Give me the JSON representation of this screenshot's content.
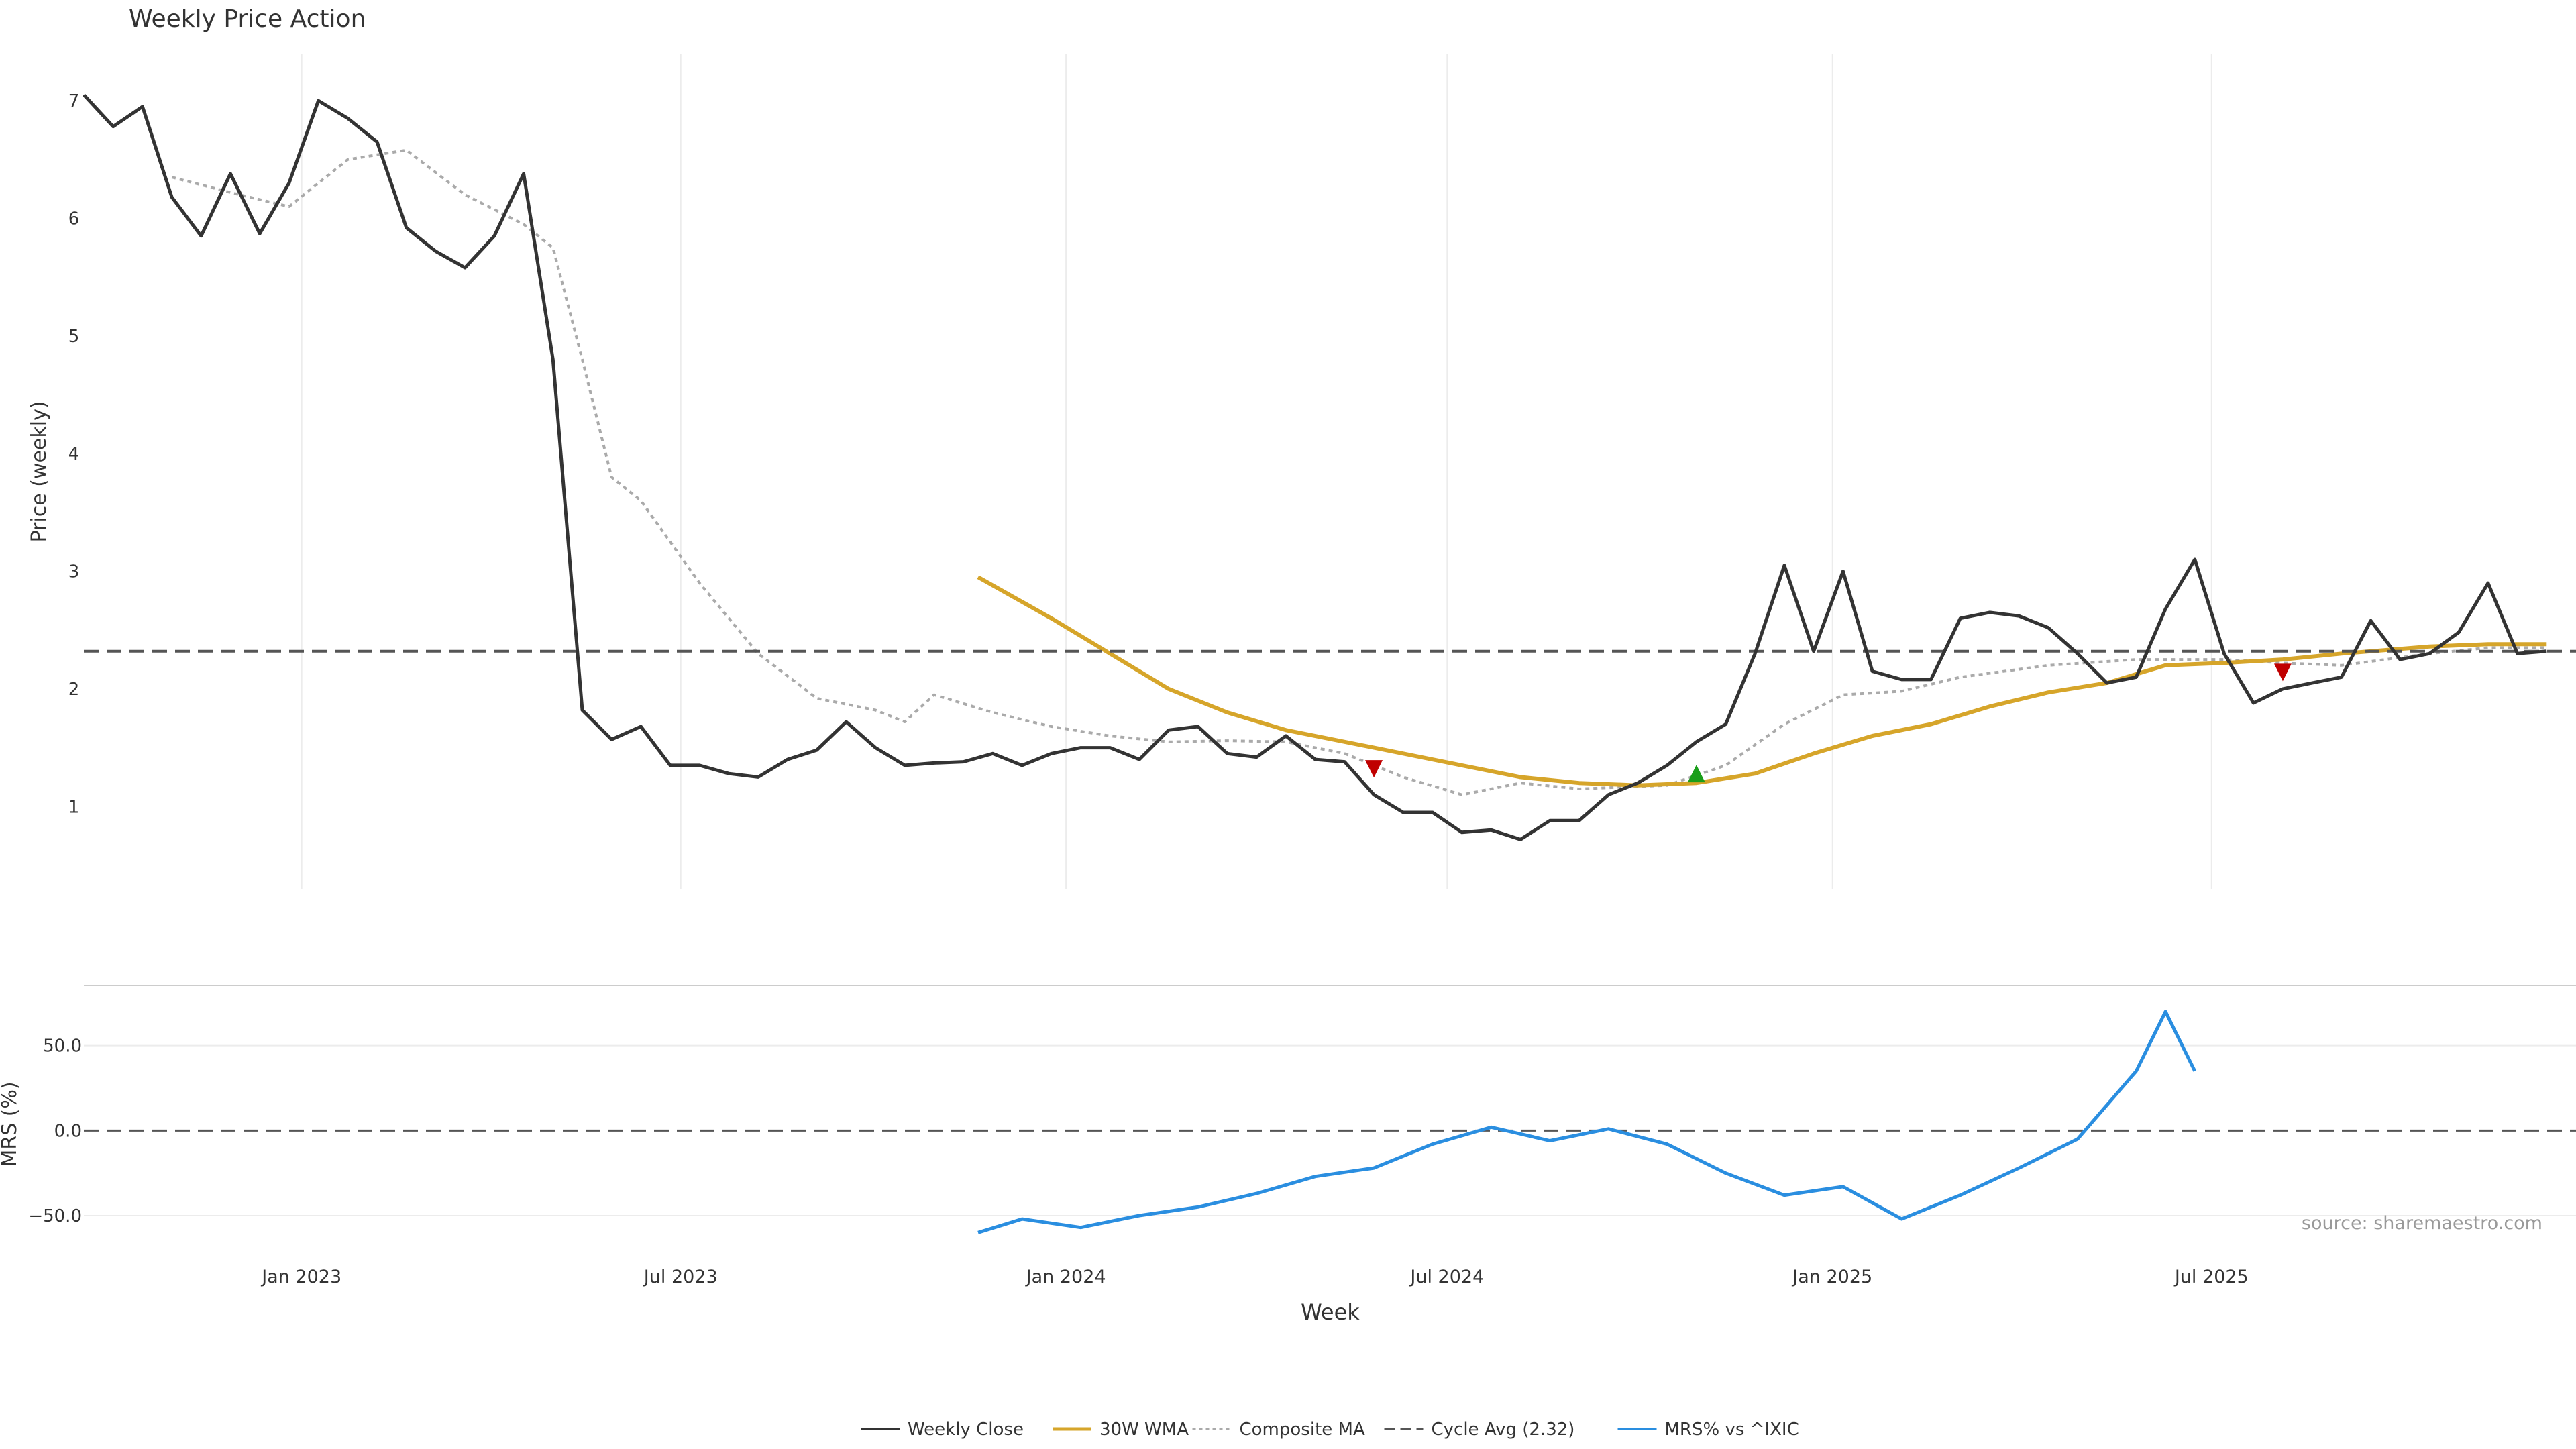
{
  "title": "Weekly Price Action",
  "watermark": "source: sharemaestro.com",
  "chart_data": {
    "type": "line",
    "x_axis": {
      "label": "Week",
      "start": "2022-09-19",
      "end": "2025-12-22",
      "ticks": [
        {
          "date": "2023-01-01",
          "label": "Jan 2023"
        },
        {
          "date": "2023-07-01",
          "label": "Jul 2023"
        },
        {
          "date": "2024-01-01",
          "label": "Jan 2024"
        },
        {
          "date": "2024-07-01",
          "label": "Jul 2024"
        },
        {
          "date": "2025-01-01",
          "label": "Jan 2025"
        },
        {
          "date": "2025-07-01",
          "label": "Jul 2025"
        }
      ]
    },
    "price_panel": {
      "ylabel": "Price (weekly)",
      "ylim": [
        0.3,
        7.4
      ],
      "yticks": [
        {
          "v": 1,
          "label": "1"
        },
        {
          "v": 2,
          "label": "2"
        },
        {
          "v": 3,
          "label": "3"
        },
        {
          "v": 4,
          "label": "4"
        },
        {
          "v": 5,
          "label": "5"
        },
        {
          "v": 6,
          "label": "6"
        },
        {
          "v": 7,
          "label": "7"
        }
      ],
      "series": [
        {
          "key": "close",
          "name": "Weekly Close",
          "color": "#333333",
          "style": "solid",
          "width": 5,
          "points": [
            [
              "2022-09-19",
              7.05
            ],
            [
              "2022-10-03",
              6.78
            ],
            [
              "2022-10-17",
              6.95
            ],
            [
              "2022-10-31",
              6.18
            ],
            [
              "2022-11-14",
              5.85
            ],
            [
              "2022-11-28",
              6.38
            ],
            [
              "2022-12-12",
              5.87
            ],
            [
              "2022-12-26",
              6.3
            ],
            [
              "2023-01-09",
              7.0
            ],
            [
              "2023-01-23",
              6.85
            ],
            [
              "2023-02-06",
              6.65
            ],
            [
              "2023-02-20",
              5.92
            ],
            [
              "2023-03-06",
              5.72
            ],
            [
              "2023-03-20",
              5.58
            ],
            [
              "2023-04-03",
              5.85
            ],
            [
              "2023-04-17",
              6.38
            ],
            [
              "2023-05-01",
              4.8
            ],
            [
              "2023-05-15",
              1.82
            ],
            [
              "2023-05-29",
              1.57
            ],
            [
              "2023-06-12",
              1.68
            ],
            [
              "2023-06-26",
              1.35
            ],
            [
              "2023-07-10",
              1.35
            ],
            [
              "2023-07-24",
              1.28
            ],
            [
              "2023-08-07",
              1.25
            ],
            [
              "2023-08-21",
              1.4
            ],
            [
              "2023-09-04",
              1.48
            ],
            [
              "2023-09-18",
              1.72
            ],
            [
              "2023-10-02",
              1.5
            ],
            [
              "2023-10-16",
              1.35
            ],
            [
              "2023-10-30",
              1.37
            ],
            [
              "2023-11-13",
              1.38
            ],
            [
              "2023-11-27",
              1.45
            ],
            [
              "2023-12-11",
              1.35
            ],
            [
              "2023-12-25",
              1.45
            ],
            [
              "2024-01-08",
              1.5
            ],
            [
              "2024-01-22",
              1.5
            ],
            [
              "2024-02-05",
              1.4
            ],
            [
              "2024-02-19",
              1.65
            ],
            [
              "2024-03-04",
              1.68
            ],
            [
              "2024-03-18",
              1.45
            ],
            [
              "2024-04-01",
              1.42
            ],
            [
              "2024-04-15",
              1.6
            ],
            [
              "2024-04-29",
              1.4
            ],
            [
              "2024-05-13",
              1.38
            ],
            [
              "2024-05-27",
              1.1
            ],
            [
              "2024-06-10",
              0.95
            ],
            [
              "2024-06-24",
              0.95
            ],
            [
              "2024-07-08",
              0.78
            ],
            [
              "2024-07-22",
              0.8
            ],
            [
              "2024-08-05",
              0.72
            ],
            [
              "2024-08-19",
              0.88
            ],
            [
              "2024-09-02",
              0.88
            ],
            [
              "2024-09-16",
              1.1
            ],
            [
              "2024-09-30",
              1.2
            ],
            [
              "2024-10-14",
              1.35
            ],
            [
              "2024-10-28",
              1.55
            ],
            [
              "2024-11-11",
              1.7
            ],
            [
              "2024-11-25",
              2.3
            ],
            [
              "2024-12-09",
              3.05
            ],
            [
              "2024-12-23",
              2.32
            ],
            [
              "2025-01-06",
              3.0
            ],
            [
              "2025-01-20",
              2.15
            ],
            [
              "2025-02-03",
              2.08
            ],
            [
              "2025-02-17",
              2.08
            ],
            [
              "2025-03-03",
              2.6
            ],
            [
              "2025-03-17",
              2.65
            ],
            [
              "2025-03-31",
              2.62
            ],
            [
              "2025-04-14",
              2.52
            ],
            [
              "2025-04-28",
              2.3
            ],
            [
              "2025-05-12",
              2.05
            ],
            [
              "2025-05-26",
              2.1
            ],
            [
              "2025-06-09",
              2.68
            ],
            [
              "2025-06-23",
              3.1
            ],
            [
              "2025-07-07",
              2.3
            ],
            [
              "2025-07-21",
              1.88
            ],
            [
              "2025-08-04",
              2.0
            ],
            [
              "2025-08-18",
              2.05
            ],
            [
              "2025-09-01",
              2.1
            ],
            [
              "2025-09-15",
              2.58
            ],
            [
              "2025-09-29",
              2.25
            ],
            [
              "2025-10-13",
              2.3
            ],
            [
              "2025-10-27",
              2.48
            ],
            [
              "2025-11-10",
              2.9
            ],
            [
              "2025-11-24",
              2.3
            ],
            [
              "2025-12-08",
              2.32
            ]
          ]
        },
        {
          "key": "composite",
          "name": "Composite MA",
          "color": "#aaaaaa",
          "style": "dotted",
          "width": 4,
          "points": [
            [
              "2022-10-31",
              6.35
            ],
            [
              "2022-11-28",
              6.22
            ],
            [
              "2022-12-26",
              6.1
            ],
            [
              "2023-01-23",
              6.5
            ],
            [
              "2023-02-20",
              6.58
            ],
            [
              "2023-03-20",
              6.2
            ],
            [
              "2023-04-17",
              5.95
            ],
            [
              "2023-05-01",
              5.75
            ],
            [
              "2023-05-15",
              4.8
            ],
            [
              "2023-05-29",
              3.8
            ],
            [
              "2023-06-12",
              3.6
            ],
            [
              "2023-07-10",
              2.9
            ],
            [
              "2023-08-07",
              2.3
            ],
            [
              "2023-09-04",
              1.92
            ],
            [
              "2023-10-02",
              1.82
            ],
            [
              "2023-10-16",
              1.72
            ],
            [
              "2023-10-30",
              1.95
            ],
            [
              "2023-11-27",
              1.8
            ],
            [
              "2023-12-25",
              1.68
            ],
            [
              "2024-01-22",
              1.6
            ],
            [
              "2024-02-19",
              1.55
            ],
            [
              "2024-03-18",
              1.56
            ],
            [
              "2024-04-15",
              1.55
            ],
            [
              "2024-05-13",
              1.45
            ],
            [
              "2024-06-10",
              1.25
            ],
            [
              "2024-07-08",
              1.1
            ],
            [
              "2024-08-05",
              1.2
            ],
            [
              "2024-09-02",
              1.15
            ],
            [
              "2024-10-14",
              1.18
            ],
            [
              "2024-11-11",
              1.35
            ],
            [
              "2024-12-09",
              1.7
            ],
            [
              "2025-01-06",
              1.95
            ],
            [
              "2025-02-03",
              1.98
            ],
            [
              "2025-03-03",
              2.1
            ],
            [
              "2025-04-14",
              2.2
            ],
            [
              "2025-05-26",
              2.25
            ],
            [
              "2025-07-07",
              2.25
            ],
            [
              "2025-08-04",
              2.22
            ],
            [
              "2025-09-01",
              2.2
            ],
            [
              "2025-10-13",
              2.3
            ],
            [
              "2025-11-10",
              2.35
            ],
            [
              "2025-12-08",
              2.35
            ]
          ]
        },
        {
          "key": "wma",
          "name": "30W WMA",
          "color": "#d6a52a",
          "style": "solid",
          "width": 6,
          "points": [
            [
              "2023-11-20",
              2.95
            ],
            [
              "2023-12-25",
              2.6
            ],
            [
              "2024-01-22",
              2.3
            ],
            [
              "2024-02-19",
              2.0
            ],
            [
              "2024-03-18",
              1.8
            ],
            [
              "2024-04-15",
              1.65
            ],
            [
              "2024-05-13",
              1.55
            ],
            [
              "2024-06-10",
              1.45
            ],
            [
              "2024-07-08",
              1.35
            ],
            [
              "2024-08-05",
              1.25
            ],
            [
              "2024-09-02",
              1.2
            ],
            [
              "2024-09-30",
              1.18
            ],
            [
              "2024-10-28",
              1.2
            ],
            [
              "2024-11-25",
              1.28
            ],
            [
              "2024-12-23",
              1.45
            ],
            [
              "2025-01-20",
              1.6
            ],
            [
              "2025-02-17",
              1.7
            ],
            [
              "2025-03-17",
              1.85
            ],
            [
              "2025-04-14",
              1.97
            ],
            [
              "2025-05-12",
              2.05
            ],
            [
              "2025-06-09",
              2.2
            ],
            [
              "2025-07-07",
              2.22
            ],
            [
              "2025-08-04",
              2.25
            ],
            [
              "2025-09-01",
              2.3
            ],
            [
              "2025-10-13",
              2.36
            ],
            [
              "2025-11-10",
              2.38
            ],
            [
              "2025-12-08",
              2.38
            ]
          ]
        },
        {
          "key": "cycle",
          "name": "Cycle Avg (2.32)",
          "color": "#555555",
          "style": "dashed",
          "width": 4,
          "value": 2.32
        }
      ],
      "markers": [
        {
          "date": "2024-05-27",
          "y": 1.32,
          "kind": "sell",
          "color": "#c00000"
        },
        {
          "date": "2024-10-28",
          "y": 1.28,
          "kind": "buy",
          "color": "#1a9e1a"
        },
        {
          "date": "2025-08-04",
          "y": 2.14,
          "kind": "sell",
          "color": "#c00000"
        }
      ]
    },
    "mrs_panel": {
      "ylabel": "MRS (%)",
      "ylim": [
        -65,
        85
      ],
      "yticks": [
        {
          "v": 50,
          "label": "50.0"
        },
        {
          "v": 0,
          "label": "0.0"
        },
        {
          "v": -50,
          "label": "−50.0"
        }
      ],
      "series": [
        {
          "key": "mrs",
          "name": "MRS% vs ^IXIC",
          "color": "#2a8ee0",
          "style": "solid",
          "width": 5,
          "points": [
            [
              "2023-11-20",
              -60
            ],
            [
              "2023-12-11",
              -52
            ],
            [
              "2024-01-08",
              -57
            ],
            [
              "2024-02-05",
              -50
            ],
            [
              "2024-03-04",
              -45
            ],
            [
              "2024-04-01",
              -37
            ],
            [
              "2024-04-29",
              -27
            ],
            [
              "2024-05-27",
              -22
            ],
            [
              "2024-06-24",
              -8
            ],
            [
              "2024-07-22",
              2
            ],
            [
              "2024-08-19",
              -6
            ],
            [
              "2024-09-16",
              1
            ],
            [
              "2024-10-14",
              -8
            ],
            [
              "2024-11-11",
              -25
            ],
            [
              "2024-12-09",
              -38
            ],
            [
              "2025-01-06",
              -33
            ],
            [
              "2025-02-03",
              -52
            ],
            [
              "2025-03-03",
              -38
            ],
            [
              "2025-03-31",
              -22
            ],
            [
              "2025-04-28",
              -5
            ],
            [
              "2025-05-26",
              35
            ],
            [
              "2025-06-09",
              70
            ],
            [
              "2025-06-23",
              35
            ]
          ]
        }
      ],
      "zero_line": {
        "value": 0,
        "color": "#555555",
        "style": "dashed"
      }
    },
    "legend": {
      "placement": "bottom-center",
      "entries": [
        "Weekly Close",
        "30W WMA",
        "Composite MA",
        "Cycle Avg (2.32)",
        "MRS% vs ^IXIC"
      ]
    }
  }
}
